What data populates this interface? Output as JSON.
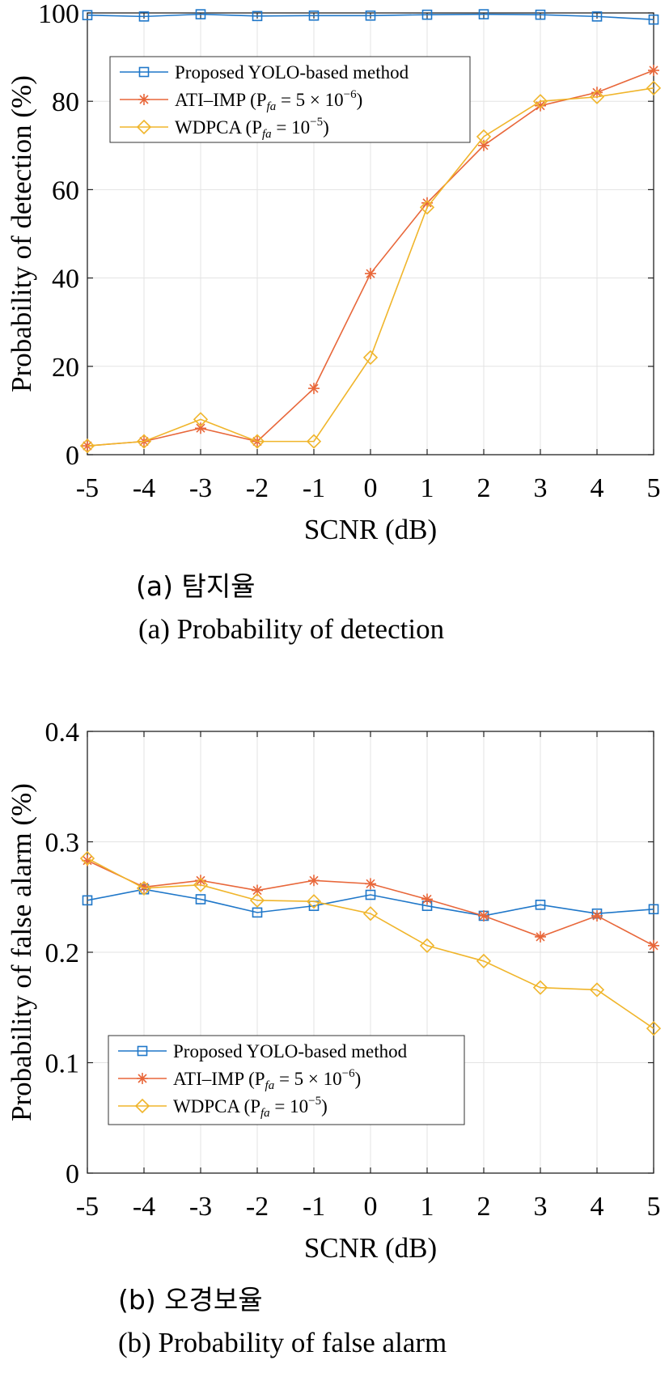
{
  "colors": {
    "proposed": "#1f77c9",
    "ati": "#e8673a",
    "wdpca": "#f0b52b",
    "grid": "#e3e3e3",
    "axis": "#222222"
  },
  "chart_data": [
    {
      "type": "line",
      "caption_kr": "(a)  탐지율",
      "caption_en": "(a)  Probability  of  detection",
      "xlabel": "SCNR (dB)",
      "ylabel": "Probability of detection (%)",
      "x": [
        -5,
        -4,
        -3,
        -2,
        -1,
        0,
        1,
        2,
        3,
        4,
        5
      ],
      "x_tick_labels": [
        "-5",
        "-4",
        "-3",
        "-2",
        "-1",
        "0",
        "1",
        "2",
        "3",
        "4",
        "5"
      ],
      "xlim": [
        -5,
        5
      ],
      "ylim": [
        0,
        100
      ],
      "y_ticks": [
        0,
        20,
        40,
        60,
        80,
        100
      ],
      "y_tick_labels": [
        "0",
        "20",
        "40",
        "60",
        "80",
        "100"
      ],
      "grid": true,
      "legend_position": "upper-left",
      "series": [
        {
          "name": "Proposed YOLO-based method",
          "legend_main": "Proposed YOLO-based method",
          "legend_sub": "",
          "legend_rest": "",
          "legend_sup": "",
          "legend_end": "",
          "marker": "square",
          "color": "#1f77c9",
          "values": [
            99.5,
            99.2,
            99.7,
            99.3,
            99.4,
            99.4,
            99.6,
            99.7,
            99.6,
            99.2,
            98.5
          ]
        },
        {
          "name": "ATI-IMP (Pfa = 5 × 10^-6)",
          "legend_main": "ATI–IMP (P",
          "legend_sub": "fa",
          "legend_rest": " = 5 × 10",
          "legend_sup": "−6",
          "legend_end": ")",
          "marker": "star",
          "color": "#e8673a",
          "values": [
            2,
            3,
            6,
            3,
            15,
            41,
            57,
            70,
            79,
            82,
            87
          ]
        },
        {
          "name": "WDPCA (Pfa = 10^-5)",
          "legend_main": "WDPCA (P",
          "legend_sub": "fa",
          "legend_rest": " = 10",
          "legend_sup": "−5",
          "legend_end": ")",
          "marker": "diamond",
          "color": "#f0b52b",
          "values": [
            2,
            3,
            8,
            3,
            3,
            22,
            56,
            72,
            80,
            81,
            83
          ]
        }
      ]
    },
    {
      "type": "line",
      "caption_kr": "(b)  오경보율",
      "caption_en": "(b)  Probability  of  false  alarm",
      "xlabel": "SCNR (dB)",
      "ylabel": "Probability of false alarm (%)",
      "x": [
        -5,
        -4,
        -3,
        -2,
        -1,
        0,
        1,
        2,
        3,
        4,
        5
      ],
      "x_tick_labels": [
        "-5",
        "-4",
        "-3",
        "-2",
        "-1",
        "0",
        "1",
        "2",
        "3",
        "4",
        "5"
      ],
      "xlim": [
        -5,
        5
      ],
      "ylim": [
        0,
        0.4
      ],
      "y_ticks": [
        0,
        0.1,
        0.2,
        0.3,
        0.4
      ],
      "y_tick_labels": [
        "0",
        "0.1",
        "0.2",
        "0.3",
        "0.4"
      ],
      "grid": true,
      "legend_position": "lower-left",
      "series": [
        {
          "name": "Proposed YOLO-based method",
          "legend_main": "Proposed YOLO-based method",
          "legend_sub": "",
          "legend_rest": "",
          "legend_sup": "",
          "legend_end": "",
          "marker": "square",
          "color": "#1f77c9",
          "values": [
            0.247,
            0.257,
            0.248,
            0.236,
            0.242,
            0.252,
            0.242,
            0.233,
            0.243,
            0.235,
            0.239
          ]
        },
        {
          "name": "ATI-IMP (Pfa = 5 × 10^-6)",
          "legend_main": "ATI–IMP (P",
          "legend_sub": "fa",
          "legend_rest": " = 5 × 10",
          "legend_sup": "−6",
          "legend_end": ")",
          "marker": "star",
          "color": "#e8673a",
          "values": [
            0.283,
            0.259,
            0.265,
            0.256,
            0.265,
            0.262,
            0.248,
            0.233,
            0.214,
            0.233,
            0.206
          ]
        },
        {
          "name": "WDPCA (Pfa = 10^-5)",
          "legend_main": "WDPCA (P",
          "legend_sub": "fa",
          "legend_rest": " = 10",
          "legend_sup": "−5",
          "legend_end": ")",
          "marker": "diamond",
          "color": "#f0b52b",
          "values": [
            0.285,
            0.258,
            0.261,
            0.247,
            0.246,
            0.235,
            0.206,
            0.192,
            0.168,
            0.166,
            0.131
          ]
        }
      ]
    }
  ]
}
